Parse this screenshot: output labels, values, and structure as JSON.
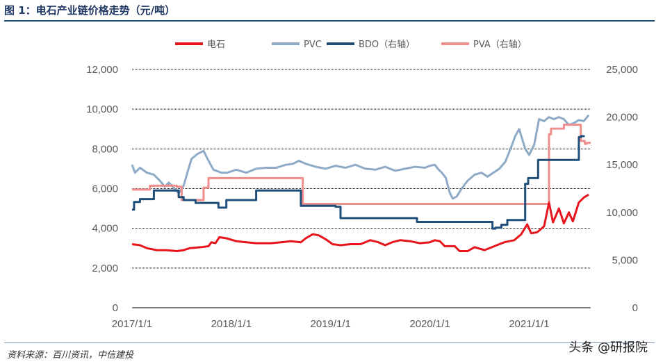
{
  "header": {
    "title": "图 1：电石产业链价格走势（元/吨）"
  },
  "footer": {
    "source": "资料来源：百川资讯，中信建投",
    "watermark": "头条 @研报院"
  },
  "chart_data": {
    "type": "line",
    "title": "图 1：电石产业链价格走势（元/吨）",
    "x_tick_labels": [
      "2017/1/1",
      "2018/1/1",
      "2019/1/1",
      "2020/1/1",
      "2021/1/1"
    ],
    "x_range": [
      2017.0,
      2021.62
    ],
    "y_left": {
      "range": [
        0,
        12000
      ],
      "ticks": [
        0,
        2000,
        4000,
        6000,
        8000,
        10000,
        12000
      ],
      "tick_labels": [
        "0",
        "2,000",
        "4,000",
        "6,000",
        "8,000",
        "10,000",
        "12,000"
      ]
    },
    "y_right": {
      "range": [
        0,
        25000
      ],
      "ticks": [
        0,
        5000,
        10000,
        15000,
        20000,
        25000
      ],
      "tick_labels": [
        "0",
        "5,000",
        "10,000",
        "15,000",
        "20,000",
        "25,000"
      ]
    },
    "grid": true,
    "legend_position": "top",
    "series": [
      {
        "name": "电石",
        "axis": "left",
        "color": "#e8141c",
        "step": false,
        "points": [
          [
            2017.0,
            3200
          ],
          [
            2017.08,
            3150
          ],
          [
            2017.15,
            3000
          ],
          [
            2017.25,
            2900
          ],
          [
            2017.35,
            2900
          ],
          [
            2017.45,
            2850
          ],
          [
            2017.52,
            2900
          ],
          [
            2017.58,
            3000
          ],
          [
            2017.7,
            3050
          ],
          [
            2017.77,
            3100
          ],
          [
            2017.8,
            3300
          ],
          [
            2017.84,
            3250
          ],
          [
            2017.88,
            3550
          ],
          [
            2017.95,
            3500
          ],
          [
            2018.05,
            3350
          ],
          [
            2018.15,
            3300
          ],
          [
            2018.25,
            3250
          ],
          [
            2018.4,
            3250
          ],
          [
            2018.5,
            3300
          ],
          [
            2018.6,
            3350
          ],
          [
            2018.7,
            3300
          ],
          [
            2018.75,
            3500
          ],
          [
            2018.82,
            3700
          ],
          [
            2018.88,
            3650
          ],
          [
            2018.95,
            3450
          ],
          [
            2019.02,
            3200
          ],
          [
            2019.1,
            3150
          ],
          [
            2019.2,
            3200
          ],
          [
            2019.3,
            3200
          ],
          [
            2019.4,
            3400
          ],
          [
            2019.48,
            3300
          ],
          [
            2019.55,
            3150
          ],
          [
            2019.62,
            3300
          ],
          [
            2019.7,
            3400
          ],
          [
            2019.8,
            3350
          ],
          [
            2019.9,
            3250
          ],
          [
            2020.0,
            3300
          ],
          [
            2020.05,
            3400
          ],
          [
            2020.1,
            3350
          ],
          [
            2020.15,
            3100
          ],
          [
            2020.25,
            3100
          ],
          [
            2020.3,
            2850
          ],
          [
            2020.38,
            2850
          ],
          [
            2020.45,
            3050
          ],
          [
            2020.55,
            2900
          ],
          [
            2020.65,
            3100
          ],
          [
            2020.75,
            3300
          ],
          [
            2020.85,
            3400
          ],
          [
            2020.92,
            3700
          ],
          [
            2020.98,
            4200
          ],
          [
            2021.02,
            3750
          ],
          [
            2021.08,
            3800
          ],
          [
            2021.15,
            4100
          ],
          [
            2021.2,
            5300
          ],
          [
            2021.24,
            4300
          ],
          [
            2021.3,
            5000
          ],
          [
            2021.35,
            4250
          ],
          [
            2021.4,
            4800
          ],
          [
            2021.44,
            4350
          ],
          [
            2021.5,
            5300
          ],
          [
            2021.55,
            5550
          ],
          [
            2021.6,
            5700
          ]
        ]
      },
      {
        "name": "PVC",
        "axis": "left",
        "color": "#8eaac6",
        "step": false,
        "points": [
          [
            2017.0,
            7200
          ],
          [
            2017.03,
            6800
          ],
          [
            2017.08,
            7050
          ],
          [
            2017.15,
            6800
          ],
          [
            2017.22,
            6700
          ],
          [
            2017.28,
            6400
          ],
          [
            2017.33,
            6100
          ],
          [
            2017.37,
            6300
          ],
          [
            2017.42,
            6050
          ],
          [
            2017.47,
            5750
          ],
          [
            2017.52,
            6150
          ],
          [
            2017.56,
            6850
          ],
          [
            2017.6,
            7500
          ],
          [
            2017.66,
            7750
          ],
          [
            2017.72,
            7900
          ],
          [
            2017.76,
            7500
          ],
          [
            2017.82,
            6950
          ],
          [
            2017.9,
            6800
          ],
          [
            2017.96,
            6800
          ],
          [
            2018.05,
            6950
          ],
          [
            2018.15,
            6800
          ],
          [
            2018.25,
            7000
          ],
          [
            2018.35,
            7050
          ],
          [
            2018.45,
            7050
          ],
          [
            2018.55,
            7200
          ],
          [
            2018.62,
            7250
          ],
          [
            2018.68,
            7400
          ],
          [
            2018.75,
            7250
          ],
          [
            2018.85,
            7100
          ],
          [
            2018.95,
            7000
          ],
          [
            2019.05,
            7150
          ],
          [
            2019.15,
            7050
          ],
          [
            2019.25,
            7200
          ],
          [
            2019.35,
            7000
          ],
          [
            2019.45,
            6950
          ],
          [
            2019.55,
            7100
          ],
          [
            2019.65,
            6900
          ],
          [
            2019.75,
            7000
          ],
          [
            2019.85,
            7100
          ],
          [
            2019.95,
            7050
          ],
          [
            2020.0,
            7150
          ],
          [
            2020.05,
            7200
          ],
          [
            2020.08,
            7000
          ],
          [
            2020.12,
            6800
          ],
          [
            2020.16,
            6550
          ],
          [
            2020.2,
            5800
          ],
          [
            2020.23,
            5500
          ],
          [
            2020.27,
            5600
          ],
          [
            2020.32,
            6000
          ],
          [
            2020.38,
            6400
          ],
          [
            2020.45,
            6700
          ],
          [
            2020.52,
            6800
          ],
          [
            2020.58,
            6600
          ],
          [
            2020.64,
            6800
          ],
          [
            2020.7,
            7000
          ],
          [
            2020.76,
            7350
          ],
          [
            2020.82,
            8100
          ],
          [
            2020.86,
            8650
          ],
          [
            2020.9,
            9000
          ],
          [
            2020.93,
            8500
          ],
          [
            2020.96,
            8000
          ],
          [
            2021.0,
            7700
          ],
          [
            2021.05,
            8200
          ],
          [
            2021.1,
            9500
          ],
          [
            2021.15,
            9400
          ],
          [
            2021.2,
            9600
          ],
          [
            2021.25,
            9500
          ],
          [
            2021.3,
            9600
          ],
          [
            2021.35,
            9500
          ],
          [
            2021.4,
            9200
          ],
          [
            2021.45,
            9300
          ],
          [
            2021.5,
            9450
          ],
          [
            2021.55,
            9400
          ],
          [
            2021.6,
            9700
          ]
        ]
      },
      {
        "name": "BDO（右轴）",
        "axis": "right",
        "color": "#1f4e79",
        "step": true,
        "points": [
          [
            2017.0,
            10300
          ],
          [
            2017.02,
            11100
          ],
          [
            2017.08,
            11400
          ],
          [
            2017.22,
            12300
          ],
          [
            2017.47,
            11600
          ],
          [
            2017.52,
            11300
          ],
          [
            2017.64,
            11000
          ],
          [
            2017.87,
            10500
          ],
          [
            2017.95,
            11300
          ],
          [
            2018.25,
            12300
          ],
          [
            2018.7,
            10700
          ],
          [
            2018.74,
            10700
          ],
          [
            2019.05,
            10600
          ],
          [
            2019.1,
            9400
          ],
          [
            2019.87,
            9000
          ],
          [
            2020.63,
            8300
          ],
          [
            2020.66,
            8400
          ],
          [
            2020.72,
            8700
          ],
          [
            2020.78,
            9200
          ],
          [
            2020.96,
            13000
          ],
          [
            2020.99,
            13600
          ],
          [
            2021.09,
            15500
          ],
          [
            2021.5,
            17900
          ],
          [
            2021.52,
            18000
          ],
          [
            2021.55,
            17900
          ]
        ]
      },
      {
        "name": "PVA（右轴）",
        "axis": "right",
        "color": "#f08d8d",
        "step": true,
        "points": [
          [
            2017.0,
            12400
          ],
          [
            2017.12,
            12400
          ],
          [
            2017.18,
            12800
          ],
          [
            2017.45,
            12700
          ],
          [
            2017.5,
            11300
          ],
          [
            2017.72,
            12600
          ],
          [
            2017.77,
            13600
          ],
          [
            2018.7,
            13600
          ],
          [
            2018.72,
            10900
          ],
          [
            2021.18,
            10900
          ],
          [
            2021.2,
            18200
          ],
          [
            2021.22,
            18800
          ],
          [
            2021.35,
            19200
          ],
          [
            2021.48,
            19200
          ],
          [
            2021.52,
            17500
          ],
          [
            2021.56,
            17200
          ],
          [
            2021.58,
            17300
          ],
          [
            2021.62,
            17300
          ]
        ]
      }
    ]
  }
}
